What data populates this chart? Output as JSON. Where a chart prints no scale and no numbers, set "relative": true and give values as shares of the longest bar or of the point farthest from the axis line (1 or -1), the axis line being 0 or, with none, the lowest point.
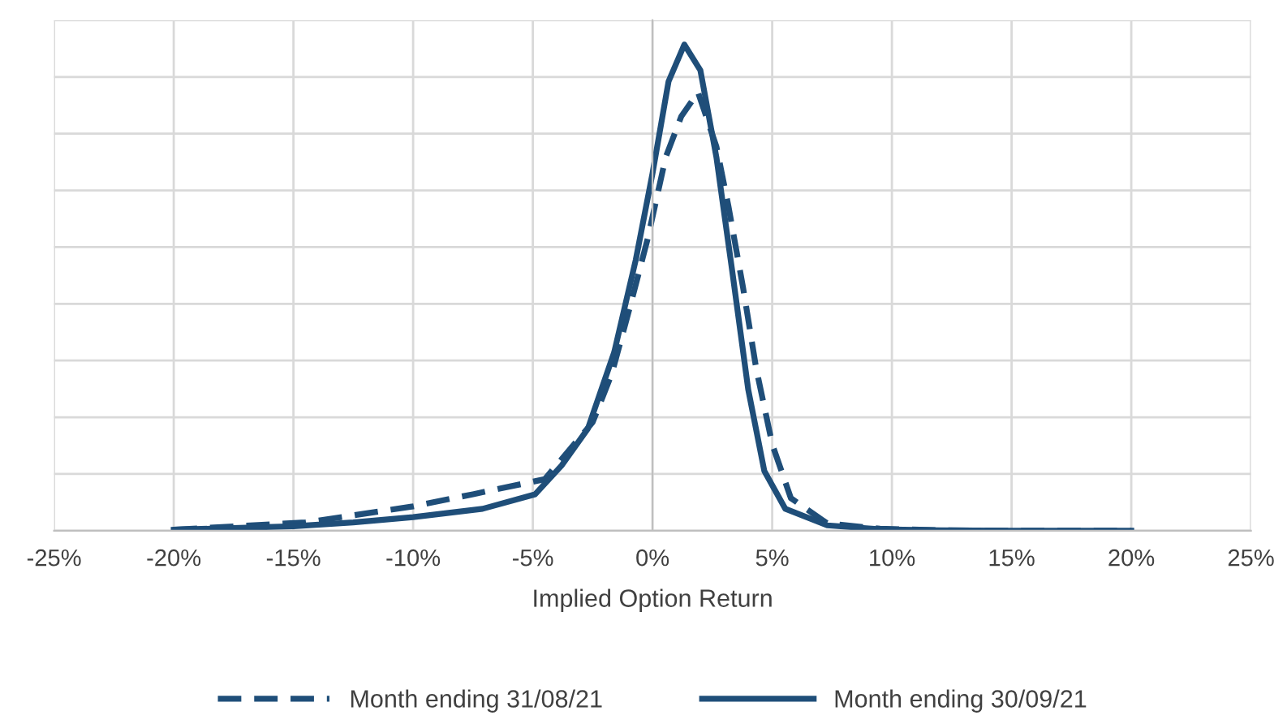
{
  "chart_data": {
    "type": "line",
    "relative": true,
    "xlabel": "Implied Option Return",
    "xlim": [
      -25,
      25
    ],
    "xticks": [
      {
        "value": -25,
        "label": "-25%"
      },
      {
        "value": -20,
        "label": "-20%"
      },
      {
        "value": -15,
        "label": "-15%"
      },
      {
        "value": -10,
        "label": "-10%"
      },
      {
        "value": -5,
        "label": "-5%"
      },
      {
        "value": 0,
        "label": "0%"
      },
      {
        "value": 5,
        "label": "5%"
      },
      {
        "value": 10,
        "label": "10%"
      },
      {
        "value": 15,
        "label": "15%"
      },
      {
        "value": 20,
        "label": "20%"
      },
      {
        "value": 25,
        "label": "25%"
      }
    ],
    "grid": true,
    "legend": "bottom",
    "marker": "none",
    "series": [
      {
        "name": "Month ending 31/08/21",
        "color": "#1f4e79",
        "line_style": "dashed",
        "x": [
          -20,
          -14.5,
          -10,
          -7.5,
          -4.5,
          -2.5,
          -1.7,
          -0.9,
          -0.2,
          0.55,
          1.2,
          1.9,
          2.67,
          3.17,
          3.78,
          4.33,
          5,
          5.78,
          7.3,
          9.5,
          12,
          15,
          20
        ],
        "values": [
          0.002,
          0.017,
          0.05,
          0.075,
          0.106,
          0.223,
          0.323,
          0.468,
          0.601,
          0.768,
          0.852,
          0.902,
          0.79,
          0.668,
          0.501,
          0.334,
          0.178,
          0.067,
          0.015,
          0.004,
          0.001,
          0.0,
          0.0
        ]
      },
      {
        "name": "Month ending 30/09/21",
        "color": "#1f4e79",
        "line_style": "solid",
        "x": [
          -20,
          -15,
          -12.5,
          -10,
          -7.1,
          -4.9,
          -3.8,
          -2.7,
          -1.6,
          -0.7,
          0,
          0.67,
          1.33,
          2,
          2.67,
          3.33,
          4,
          4.67,
          5.55,
          7.3,
          9.5,
          12,
          15,
          20
        ],
        "values": [
          0.002,
          0.009,
          0.017,
          0.028,
          0.045,
          0.075,
          0.134,
          0.21,
          0.367,
          0.557,
          0.735,
          0.924,
          1.0,
          0.947,
          0.768,
          0.534,
          0.29,
          0.123,
          0.045,
          0.011,
          0.003,
          0.001,
          0.0,
          0.0
        ]
      }
    ]
  }
}
